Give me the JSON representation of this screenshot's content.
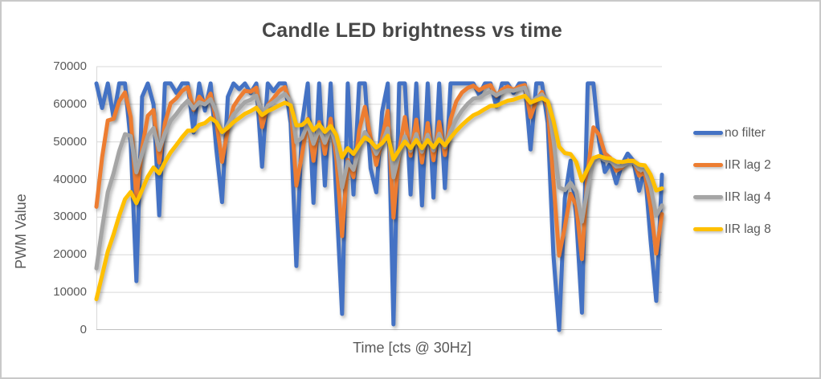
{
  "chart_data": {
    "type": "line",
    "title": "Candle LED brightness vs time",
    "xlabel": "Time [cts @ 30Hz]",
    "ylabel": "PWM Value",
    "ylim": [
      0,
      70000
    ],
    "ytick_values": [
      0,
      10000,
      20000,
      30000,
      40000,
      50000,
      60000,
      70000
    ],
    "ytick_labels": [
      "0",
      "10000",
      "20000",
      "30000",
      "40000",
      "50000",
      "60000",
      "70000"
    ],
    "x_tick_labels_visible": false,
    "grid": "horizontal",
    "legend_position": "right",
    "gridline_color": "#d9d9d9",
    "axis_color": "#bfbfbf",
    "text_color": "#595959",
    "title_color": "#474747",
    "series": [
      {
        "name": "no filter",
        "color": "#4472C4",
        "values": [
          65535,
          59000,
          65535,
          56500,
          65535,
          65535,
          50000,
          13000,
          62000,
          65535,
          60000,
          30500,
          65535,
          65535,
          63000,
          65535,
          65535,
          52500,
          65535,
          58300,
          65535,
          48000,
          34000,
          62000,
          65535,
          64000,
          65535,
          63000,
          65535,
          43400,
          65535,
          63500,
          65535,
          65535,
          55000,
          17000,
          55000,
          65535,
          33800,
          65535,
          38400,
          65535,
          35000,
          4300,
          65535,
          36000,
          65535,
          65535,
          43000,
          36600,
          58000,
          65535,
          1500,
          65535,
          65535,
          36000,
          65535,
          33100,
          65535,
          35200,
          65535,
          37700,
          65535,
          65535,
          65535,
          65535,
          65535,
          62500,
          65535,
          65535,
          59400,
          65535,
          65535,
          63000,
          65535,
          65535,
          48000,
          65535,
          65535,
          55000,
          20000,
          0,
          35000,
          45000,
          30000,
          4600,
          65535,
          65535,
          50000,
          42000,
          44400,
          39000,
          44000,
          46900,
          45000,
          37000,
          42600,
          24000,
          7750,
          41300
        ]
      },
      {
        "name": "IIR lag 2",
        "color": "#ED7D31",
        "derived": {
          "filter": "iir_lag",
          "source": "no filter",
          "lag": 2,
          "initial": 0
        }
      },
      {
        "name": "IIR lag 4",
        "color": "#A5A5A5",
        "derived": {
          "filter": "iir_lag",
          "source": "no filter",
          "lag": 4,
          "initial": 0
        }
      },
      {
        "name": "IIR lag 8",
        "color": "#FFC000",
        "derived": {
          "filter": "iir_lag",
          "source": "no filter",
          "lag": 8,
          "initial": 0
        }
      }
    ]
  }
}
